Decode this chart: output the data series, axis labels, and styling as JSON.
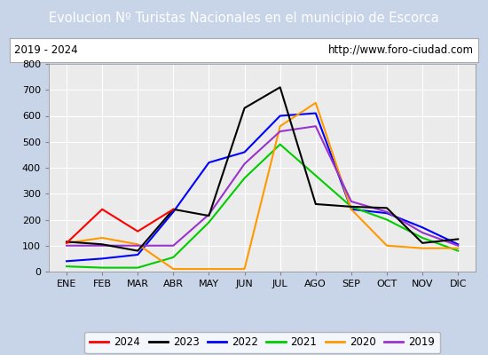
{
  "title": "Evolucion Nº Turistas Nacionales en el municipio de Escorca",
  "subtitle_left": "2019 - 2024",
  "subtitle_right": "http://www.foro-ciudad.com",
  "months": [
    "ENE",
    "FEB",
    "MAR",
    "ABR",
    "MAY",
    "JUN",
    "JUL",
    "AGO",
    "SEP",
    "OCT",
    "NOV",
    "DIC"
  ],
  "ylim": [
    0,
    800
  ],
  "yticks": [
    0,
    100,
    200,
    300,
    400,
    500,
    600,
    700,
    800
  ],
  "series": {
    "2024": {
      "values": [
        110,
        240,
        155,
        240,
        null,
        null,
        null,
        null,
        null,
        null,
        null,
        null
      ],
      "color": "#ff0000",
      "zorder": 5
    },
    "2023": {
      "values": [
        115,
        105,
        80,
        240,
        215,
        630,
        710,
        260,
        250,
        245,
        110,
        125
      ],
      "color": "#000000",
      "zorder": 4
    },
    "2022": {
      "values": [
        40,
        50,
        65,
        230,
        420,
        460,
        600,
        610,
        240,
        225,
        170,
        105
      ],
      "color": "#0000ff",
      "zorder": 3
    },
    "2021": {
      "values": [
        20,
        15,
        15,
        55,
        190,
        360,
        490,
        370,
        250,
        200,
        130,
        80
      ],
      "color": "#00cc00",
      "zorder": 3
    },
    "2020": {
      "values": [
        110,
        130,
        105,
        10,
        10,
        10,
        560,
        650,
        240,
        100,
        90,
        90
      ],
      "color": "#ff9900",
      "zorder": 3
    },
    "2019": {
      "values": [
        100,
        100,
        100,
        100,
        220,
        415,
        540,
        560,
        270,
        230,
        150,
        100
      ],
      "color": "#9933cc",
      "zorder": 3
    }
  },
  "title_bg_color": "#4d79c7",
  "title_fg_color": "#ffffff",
  "plot_bg_color": "#ebebeb",
  "grid_color": "#ffffff",
  "outer_bg_color": "#c8d4e8",
  "legend_order": [
    "2024",
    "2023",
    "2022",
    "2021",
    "2020",
    "2019"
  ]
}
